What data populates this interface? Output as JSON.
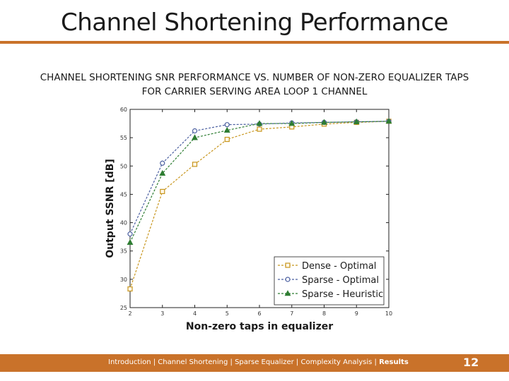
{
  "slide": {
    "title": "Channel Shortening Performance",
    "page_number": "12",
    "footer_nav": {
      "items": [
        "Introduction",
        "Channel Shortening",
        "Sparse Equalizer",
        "Complexity Analysis"
      ],
      "current": "Results",
      "separator": " | "
    }
  },
  "colors": {
    "accent": "#c9722a",
    "dense_optimal": "#c8961e",
    "sparse_optimal": "#4b5fa0",
    "sparse_heuristic": "#2e7d32"
  },
  "chart_data": {
    "type": "line",
    "title": "CHANNEL SHORTENING SNR PERFORMANCE VS. NUMBER OF NON-ZERO EQUALIZER TAPS",
    "subtitle": "FOR CARRIER SERVING AREA LOOP 1 CHANNEL",
    "xlabel": "Non-zero taps in equalizer",
    "ylabel": "Output SSNR [dB]",
    "xlim": [
      2,
      10
    ],
    "ylim": [
      25,
      60
    ],
    "xticks": [
      "2",
      "3",
      "4",
      "5",
      "6",
      "7",
      "8",
      "9",
      "10"
    ],
    "yticks": [
      "25",
      "30",
      "35",
      "40",
      "45",
      "50",
      "55",
      "60"
    ],
    "grid": false,
    "legend_position": "bottom-right",
    "x": [
      2,
      3,
      4,
      5,
      6,
      7,
      8,
      9,
      10
    ],
    "series": [
      {
        "name": "Dense - Optimal",
        "marker": "square",
        "color": "#c8961e",
        "values": [
          28.3,
          45.5,
          50.3,
          54.7,
          56.5,
          56.9,
          57.4,
          57.7,
          57.9
        ]
      },
      {
        "name": "Sparse - Optimal",
        "marker": "circle",
        "color": "#4b5fa0",
        "values": [
          38.0,
          50.5,
          56.2,
          57.3,
          57.4,
          57.6,
          57.7,
          57.8,
          57.9
        ]
      },
      {
        "name": "Sparse - Heuristic",
        "marker": "triangle",
        "color": "#2e7d32",
        "values": [
          36.5,
          48.7,
          55.0,
          56.3,
          57.5,
          57.5,
          57.7,
          57.8,
          57.9
        ]
      }
    ]
  }
}
